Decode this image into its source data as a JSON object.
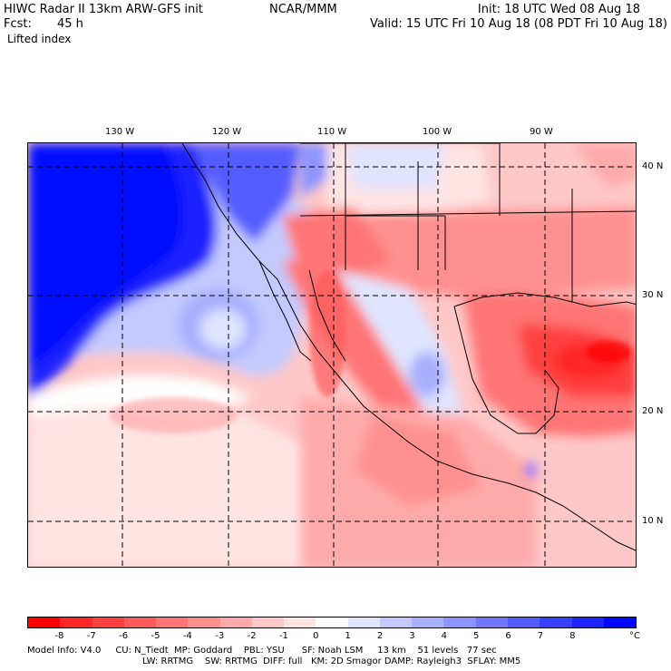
{
  "header": {
    "left_line1": "HIWC Radar II 13km ARW-GFS init",
    "center_line1": "NCAR/MMM",
    "fcst_label": "Fcst:",
    "fcst_value": "45 h",
    "field": "Lifted index",
    "init": "Init: 18 UTC Wed 08 Aug 18",
    "valid": "Valid: 15 UTC Fri 10 Aug 18 (08 PDT Fri 10 Aug 18)"
  },
  "map": {
    "lon_labels": [
      "130 W",
      "120 W",
      "110 W",
      "100 W",
      "90 W"
    ],
    "lat_labels": [
      "40 N",
      "30 N",
      "20 N",
      "10 N"
    ]
  },
  "colorbar": {
    "unit": "°C",
    "ticks": [
      "-8",
      "-7",
      "-6",
      "-5",
      "-4",
      "-3",
      "-2",
      "-1",
      "0",
      "1",
      "2",
      "3",
      "4",
      "5",
      "6",
      "7",
      "8"
    ],
    "colors": [
      "#ff0000",
      "#ff2626",
      "#ff4040",
      "#ff5a5a",
      "#ff7474",
      "#ff9090",
      "#ffaaaa",
      "#ffc8c8",
      "#ffe4e4",
      "#ffffff",
      "#e0e4ff",
      "#c4caff",
      "#a8b0ff",
      "#8c94ff",
      "#7078ff",
      "#545cff",
      "#3840ff",
      "#1c24ff",
      "#0008ff"
    ]
  },
  "footer": {
    "line1": "Model Info: V4.0     CU: N_Tiedt  MP: Goddard    PBL: YSU      SF: Noah LSM     13 km    51 levels   77 sec",
    "line2": "LW: RRTMG    SW: RRTMG  DIFF: full   KM: 2D Smagor DAMP: Rayleigh3  SFLAY: MM5"
  }
}
